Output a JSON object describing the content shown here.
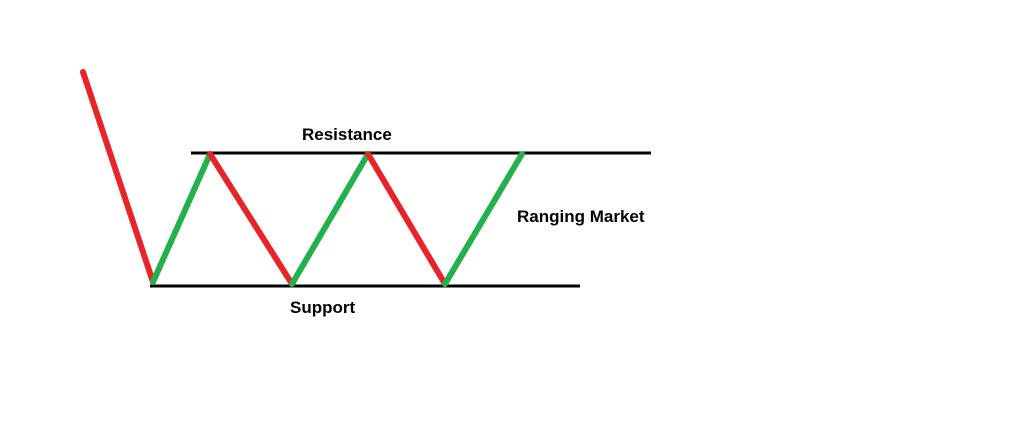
{
  "labels": {
    "resistance": "Resistance",
    "support": "Support",
    "ranging_market": "Ranging Market"
  },
  "colors": {
    "background": "#ffffff",
    "level_line": "#000000",
    "down_move": "#e8242b",
    "up_move": "#23b14d",
    "text": "#000000"
  },
  "levels": [
    {
      "name": "resistance"
    },
    {
      "name": "support"
    }
  ],
  "price_path": {
    "segments": [
      {
        "direction": "down"
      },
      {
        "direction": "up"
      },
      {
        "direction": "down"
      },
      {
        "direction": "up"
      },
      {
        "direction": "down"
      },
      {
        "direction": "up"
      }
    ]
  }
}
